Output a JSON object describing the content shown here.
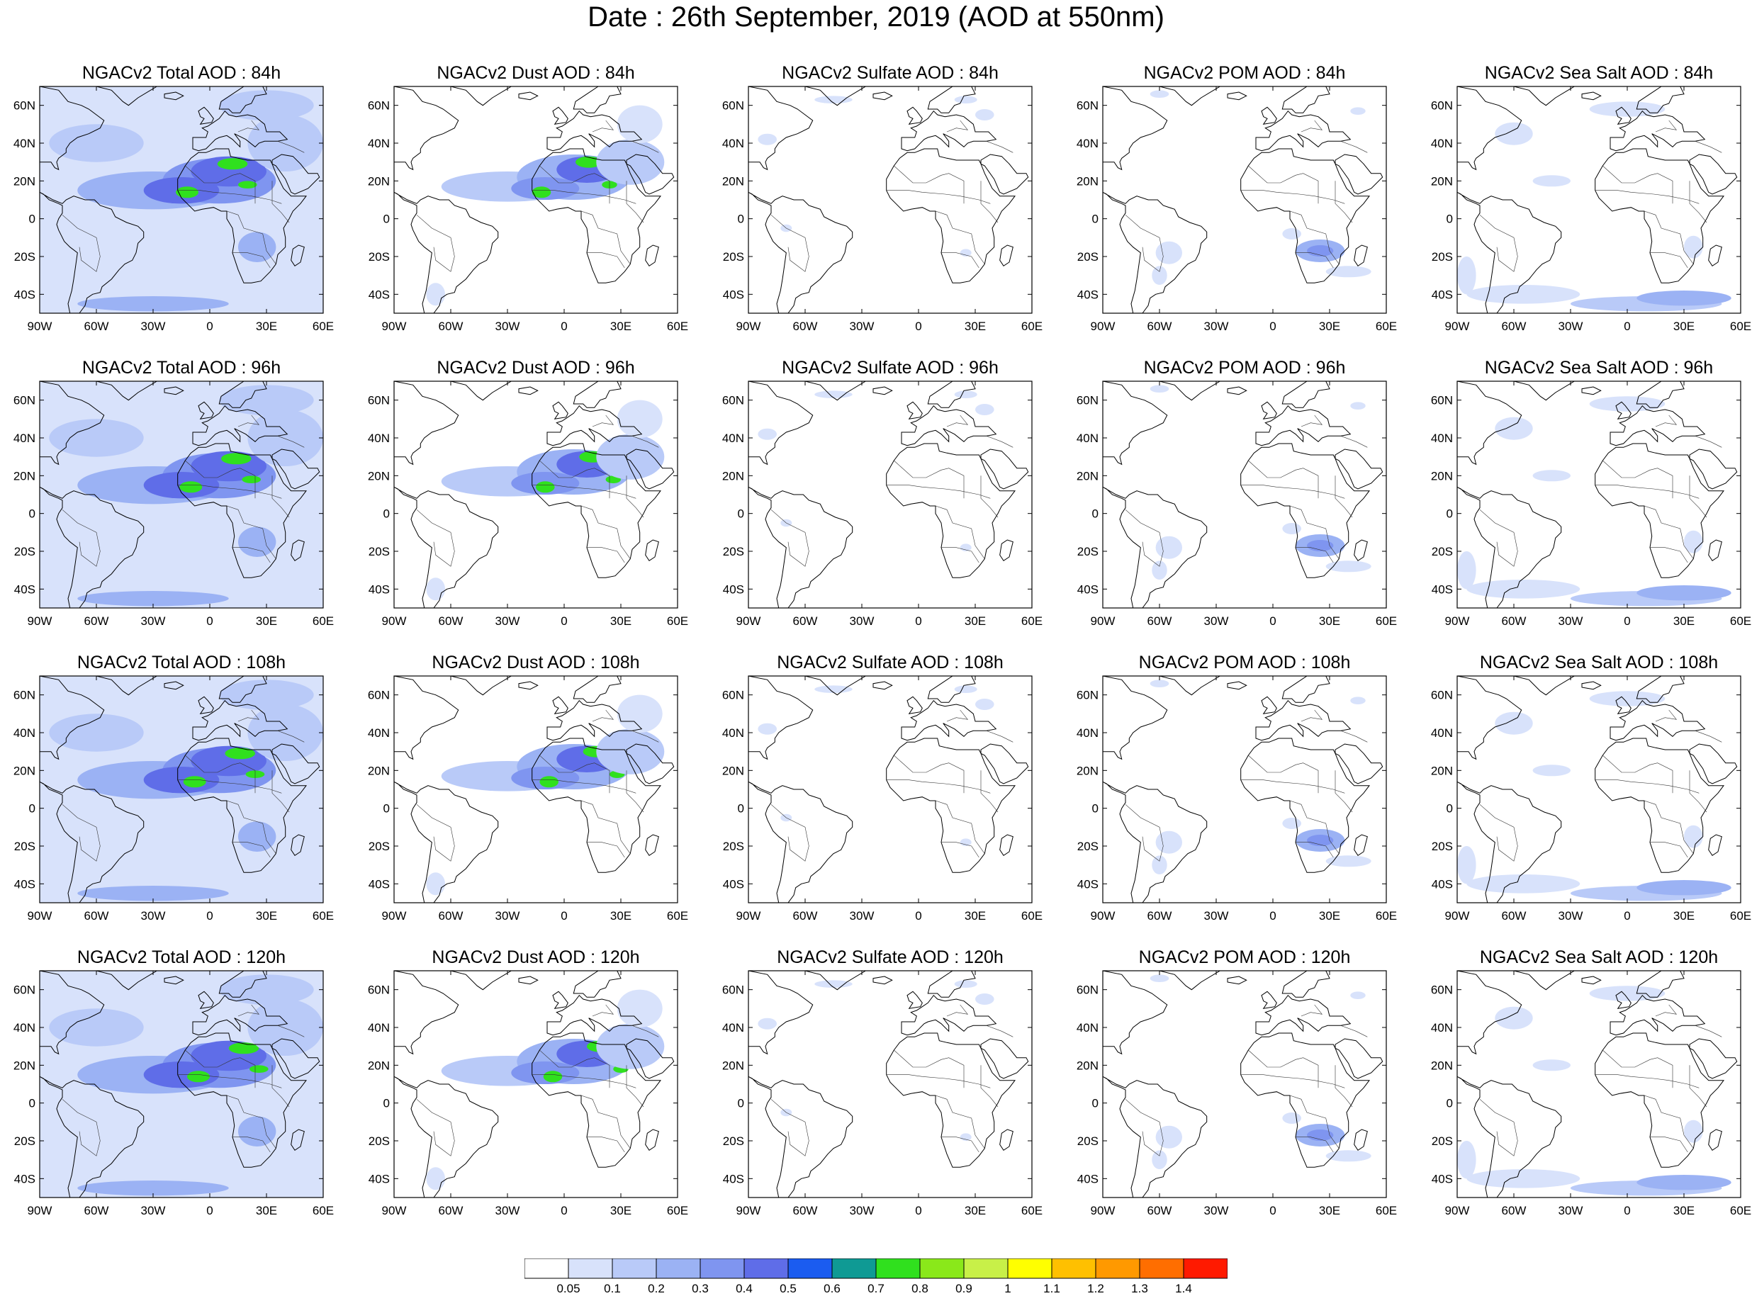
{
  "title": "Date : 26th September, 2019 (AOD at 550nm)",
  "species": [
    "Total",
    "Dust",
    "Sulfate",
    "POM",
    "Sea Salt"
  ],
  "lead_times": [
    "84h",
    "96h",
    "108h",
    "120h"
  ],
  "panels": [
    {
      "title": "NGACv2 Total AOD : 84h",
      "species": "Total",
      "lead": "84h"
    },
    {
      "title": "NGACv2 Dust AOD : 84h",
      "species": "Dust",
      "lead": "84h"
    },
    {
      "title": "NGACv2 Sulfate AOD : 84h",
      "species": "Sulfate",
      "lead": "84h"
    },
    {
      "title": "NGACv2 POM AOD : 84h",
      "species": "POM",
      "lead": "84h"
    },
    {
      "title": "NGACv2 Sea Salt AOD : 84h",
      "species": "Sea Salt",
      "lead": "84h"
    },
    {
      "title": "NGACv2 Total AOD : 96h",
      "species": "Total",
      "lead": "96h"
    },
    {
      "title": "NGACv2 Dust AOD : 96h",
      "species": "Dust",
      "lead": "96h"
    },
    {
      "title": "NGACv2 Sulfate AOD : 96h",
      "species": "Sulfate",
      "lead": "96h"
    },
    {
      "title": "NGACv2 POM AOD : 96h",
      "species": "POM",
      "lead": "96h"
    },
    {
      "title": "NGACv2 Sea Salt AOD : 96h",
      "species": "Sea Salt",
      "lead": "96h"
    },
    {
      "title": "NGACv2 Total AOD : 108h",
      "species": "Total",
      "lead": "108h"
    },
    {
      "title": "NGACv2 Dust AOD : 108h",
      "species": "Dust",
      "lead": "108h"
    },
    {
      "title": "NGACv2 Sulfate AOD : 108h",
      "species": "Sulfate",
      "lead": "108h"
    },
    {
      "title": "NGACv2 POM AOD : 108h",
      "species": "POM",
      "lead": "108h"
    },
    {
      "title": "NGACv2 Sea Salt AOD : 108h",
      "species": "Sea Salt",
      "lead": "108h"
    },
    {
      "title": "NGACv2 Total AOD : 120h",
      "species": "Total",
      "lead": "120h"
    },
    {
      "title": "NGACv2 Dust AOD : 120h",
      "species": "Dust",
      "lead": "120h"
    },
    {
      "title": "NGACv2 Sulfate AOD : 120h",
      "species": "Sulfate",
      "lead": "120h"
    },
    {
      "title": "NGACv2 POM AOD : 120h",
      "species": "POM",
      "lead": "120h"
    },
    {
      "title": "NGACv2 Sea Salt  AOD : 120h",
      "species": "Sea Salt",
      "lead": "120h"
    }
  ],
  "map": {
    "lon_range": [
      -90,
      60
    ],
    "lat_range": [
      -50,
      70
    ],
    "lat_ticks": [
      {
        "value": 60,
        "label": "60N"
      },
      {
        "value": 40,
        "label": "40N"
      },
      {
        "value": 20,
        "label": "20N"
      },
      {
        "value": 0,
        "label": "0"
      },
      {
        "value": -20,
        "label": "20S"
      },
      {
        "value": -40,
        "label": "40S"
      }
    ],
    "lon_ticks": [
      {
        "value": -90,
        "label": "90W"
      },
      {
        "value": -60,
        "label": "60W"
      },
      {
        "value": -30,
        "label": "30W"
      },
      {
        "value": 0,
        "label": "0"
      },
      {
        "value": 30,
        "label": "30E"
      },
      {
        "value": 60,
        "label": "60E"
      }
    ]
  },
  "colorbar": {
    "labels": [
      "0.05",
      "0.1",
      "0.2",
      "0.3",
      "0.4",
      "0.5",
      "0.6",
      "0.7",
      "0.8",
      "0.9",
      "1",
      "1.1",
      "1.2",
      "1.3",
      "1.4"
    ],
    "colors": [
      "#ffffff",
      "#d8e2fb",
      "#b9caf8",
      "#9bb2f4",
      "#7f95f0",
      "#5f6de8",
      "#1b5cf0",
      "#0f9a94",
      "#30e01e",
      "#8ae81a",
      "#c8f048",
      "#ffff00",
      "#ffc000",
      "#ff9900",
      "#ff6e00",
      "#ff1a00"
    ]
  }
}
